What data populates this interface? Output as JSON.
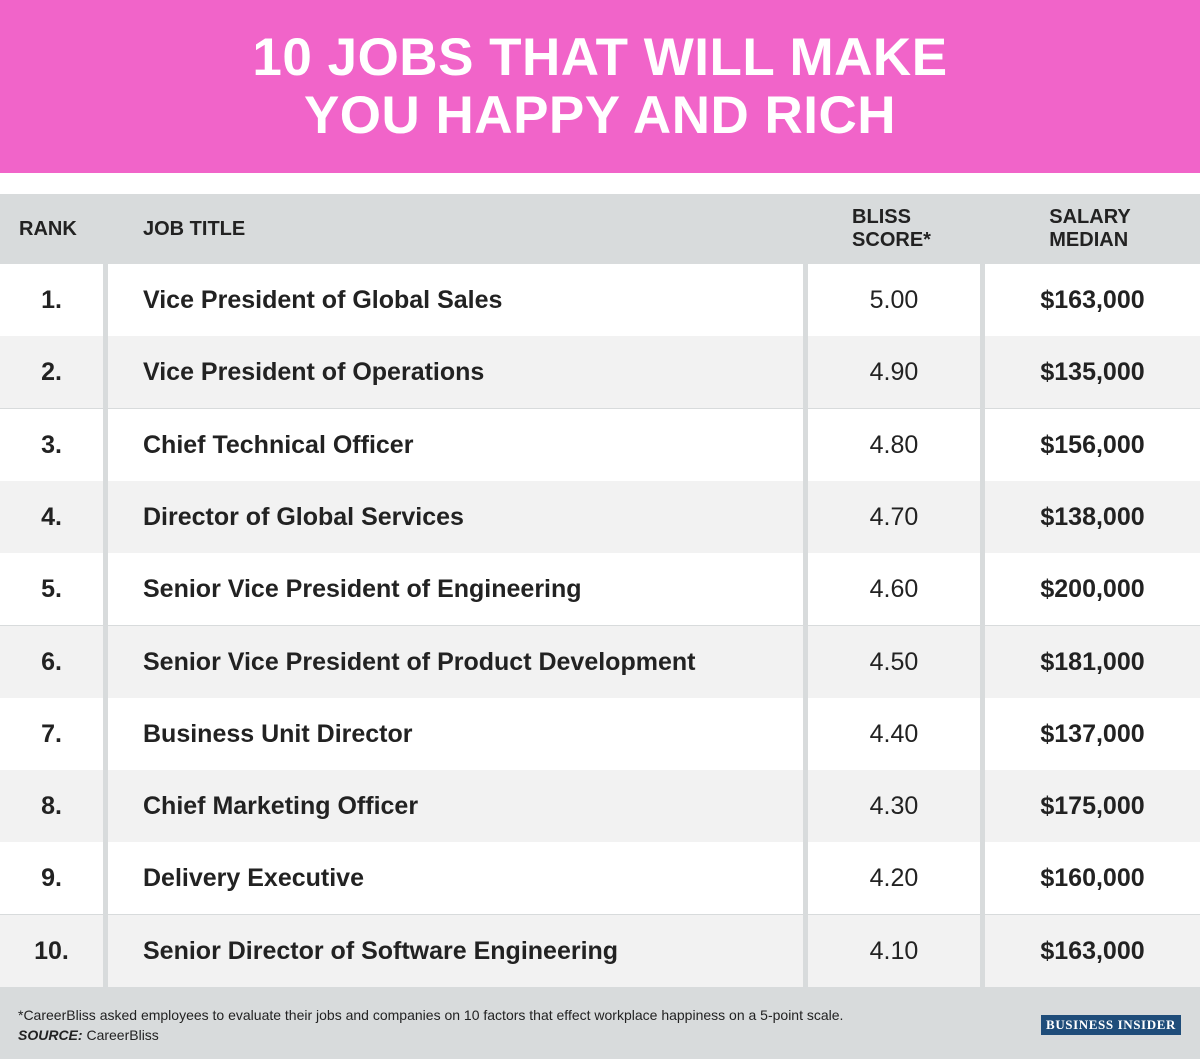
{
  "header": {
    "title_line1": "10 JOBS THAT WILL MAKE",
    "title_line2": "YOU HAPPY AND RICH"
  },
  "columns": {
    "rank": "RANK",
    "job_title": "JOB TITLE",
    "bliss_line1": "BLISS",
    "bliss_line2": "SCORE*",
    "salary_line1": "SALARY",
    "salary_line2": "MEDIAN"
  },
  "colors": {
    "header_bg": "#f164c9",
    "row_white": "#ffffff",
    "row_grey": "#f2f2f2",
    "divider": "#d8dbdc",
    "logo_bg": "#1f4d7a"
  },
  "footer": {
    "footnote": "*CareerBliss asked employees to evaluate their jobs and companies on 10 factors that effect workplace happiness on a 5-point scale.",
    "source_label": "SOURCE:",
    "source_value": " CareerBliss",
    "logo": "BUSINESS INSIDER"
  },
  "chart_data": {
    "type": "table",
    "title": "10 JOBS THAT WILL MAKE YOU HAPPY AND RICH",
    "columns": [
      "RANK",
      "JOB TITLE",
      "BLISS SCORE*",
      "SALARY MEDIAN"
    ],
    "rows": [
      {
        "rank": "1.",
        "title": "Vice President of Global Sales",
        "bliss": "5.00",
        "salary": "$163,000"
      },
      {
        "rank": "2.",
        "title": "Vice President of Operations",
        "bliss": "4.90",
        "salary": "$135,000"
      },
      {
        "rank": "3.",
        "title": "Chief Technical Officer",
        "bliss": "4.80",
        "salary": "$156,000"
      },
      {
        "rank": "4.",
        "title": "Director of Global Services",
        "bliss": "4.70",
        "salary": "$138,000"
      },
      {
        "rank": "5.",
        "title": "Senior Vice President of Engineering",
        "bliss": "4.60",
        "salary": "$200,000"
      },
      {
        "rank": "6.",
        "title": "Senior Vice President of Product Development",
        "bliss": "4.50",
        "salary": "$181,000"
      },
      {
        "rank": "7.",
        "title": "Business Unit Director",
        "bliss": "4.40",
        "salary": "$137,000"
      },
      {
        "rank": "8.",
        "title": "Chief Marketing Officer",
        "bliss": "4.30",
        "salary": "$175,000"
      },
      {
        "rank": "9.",
        "title": "Delivery Executive",
        "bliss": "4.20",
        "salary": "$160,000"
      },
      {
        "rank": "10.",
        "title": "Senior Director of Software Engineering",
        "bliss": "4.10",
        "salary": "$163,000"
      }
    ]
  }
}
